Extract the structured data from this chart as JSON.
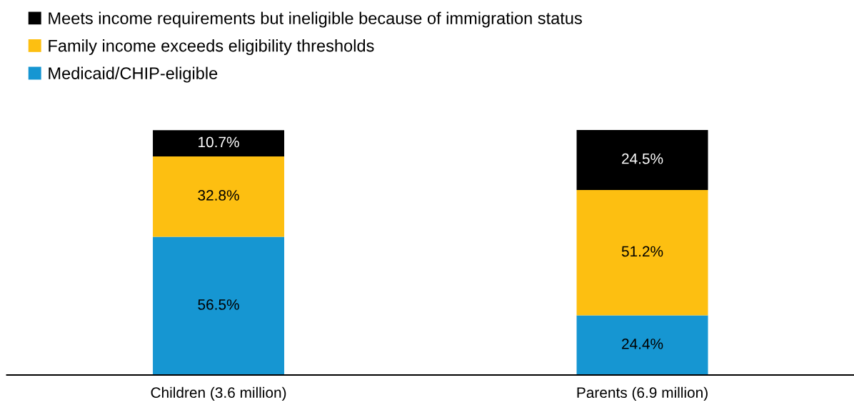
{
  "chart_data": {
    "type": "bar",
    "stacked": true,
    "categories": [
      "Children (3.6 million)",
      "Parents (6.9 million)"
    ],
    "series": [
      {
        "name": "Medicaid/CHIP-eligible",
        "color": "#1696d2",
        "values": [
          56.5,
          24.4
        ],
        "value_labels": [
          "56.5%",
          "24.4%"
        ]
      },
      {
        "name": "Family income exceeds eligibility thresholds",
        "color": "#fdbf11",
        "values": [
          32.8,
          51.2
        ],
        "value_labels": [
          "32.8%",
          "51.2%"
        ]
      },
      {
        "name": "Meets income requirements but ineligible because of immigration status",
        "color": "#000000",
        "values": [
          10.7,
          24.5
        ],
        "value_labels": [
          "10.7%",
          "24.5%"
        ]
      }
    ],
    "legend": "top left",
    "grid": false
  }
}
